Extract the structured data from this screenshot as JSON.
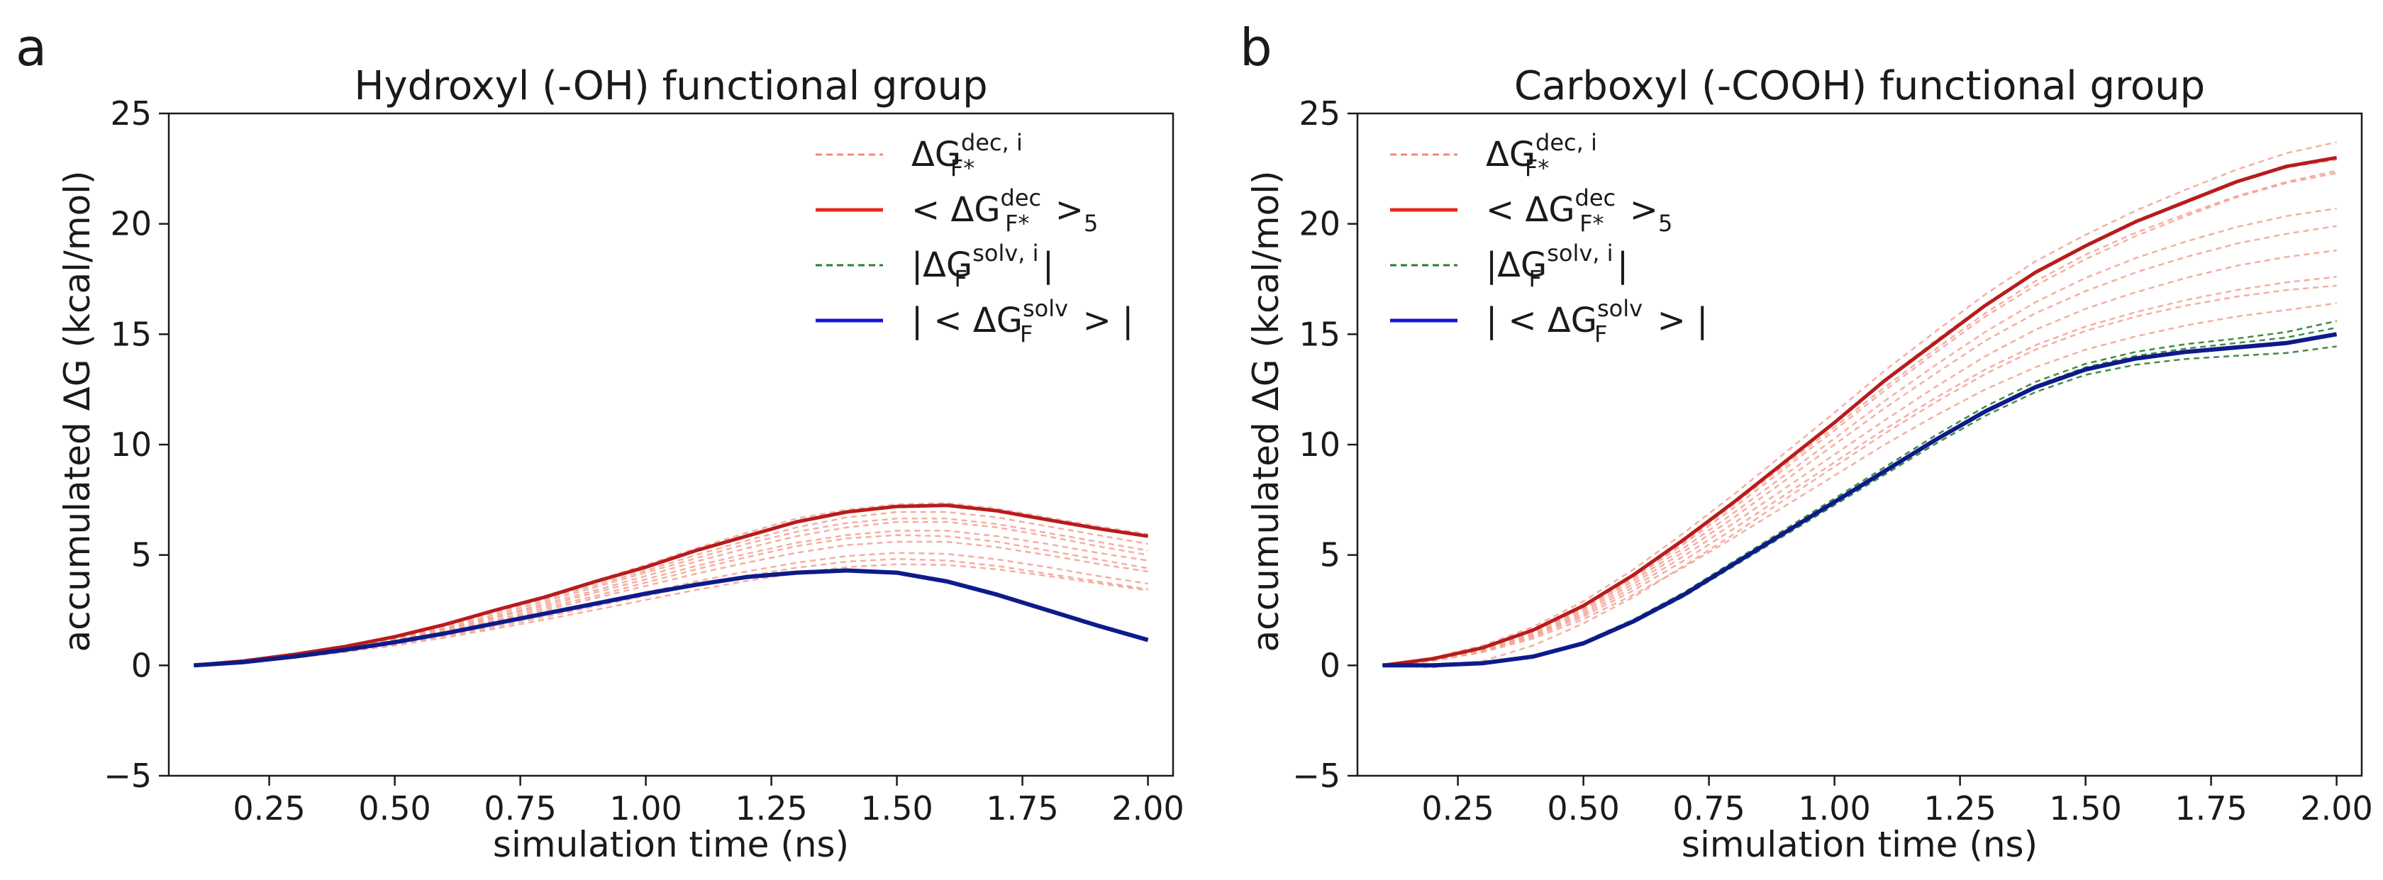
{
  "figure": {
    "panel_letters": [
      "a",
      "b"
    ]
  },
  "chart_data": [
    {
      "type": "line",
      "panel": "a",
      "title": "Hydroxyl (-OH) functional group",
      "xlabel": "simulation time (ns)",
      "ylabel": "accumulated ΔG (kcal/mol)",
      "xlim": [
        0.05,
        2.05
      ],
      "ylim": [
        -5,
        25
      ],
      "xticks": [
        0.25,
        0.5,
        0.75,
        1.0,
        1.25,
        1.5,
        1.75,
        2.0
      ],
      "xtick_labels": [
        "0.25",
        "0.50",
        "0.75",
        "1.00",
        "1.25",
        "1.50",
        "1.75",
        "2.00"
      ],
      "yticks": [
        -5,
        0,
        5,
        10,
        15,
        20,
        25
      ],
      "ytick_labels": [
        "−5",
        "0",
        "5",
        "10",
        "15",
        "20",
        "25"
      ],
      "grid": false,
      "legend_position": "top-right",
      "legend": [
        {
          "base": "ΔG",
          "sup": "dec, i",
          "sub": "F*",
          "pre": "",
          "post": "",
          "style": "dashed",
          "color": "#f08a76"
        },
        {
          "base": "ΔG",
          "sup": "dec",
          "sub": "F*",
          "pre": "< ",
          "post": " >",
          "post_sub": "5",
          "style": "solid",
          "color": "#e8281e"
        },
        {
          "base": "ΔG",
          "sup": "solv, i",
          "sub": "F",
          "pre": "|",
          "post": "|",
          "style": "dashed",
          "color": "#2e7d32"
        },
        {
          "base": "ΔG",
          "sup": "solv",
          "sub": "F",
          "pre": "| < ",
          "post": " > |",
          "style": "solid",
          "color": "#1414d8"
        }
      ],
      "x": [
        0.1,
        0.2,
        0.3,
        0.4,
        0.5,
        0.6,
        0.7,
        0.8,
        0.9,
        1.0,
        1.1,
        1.2,
        1.3,
        1.4,
        1.5,
        1.6,
        1.7,
        1.8,
        1.9,
        2.0
      ],
      "series": [
        {
          "name": "<ΔG dec>_5 (mean)",
          "color": "#b71c1c",
          "width": 5,
          "values": [
            0.0,
            0.2,
            0.5,
            0.85,
            1.3,
            1.85,
            2.5,
            3.1,
            3.8,
            4.45,
            5.2,
            5.85,
            6.5,
            6.95,
            7.2,
            7.25,
            7.0,
            6.6,
            6.2,
            5.85
          ]
        },
        {
          "name": "|<ΔG solv>|",
          "color": "#0d1b8a",
          "width": 6,
          "values": [
            0.0,
            0.15,
            0.4,
            0.7,
            1.05,
            1.45,
            1.9,
            2.35,
            2.8,
            3.25,
            3.65,
            4.0,
            4.2,
            4.3,
            4.2,
            3.8,
            3.2,
            2.5,
            1.8,
            1.15
          ]
        }
      ],
      "individual_dec": [
        [
          0.0,
          0.2,
          0.5,
          0.85,
          1.3,
          1.85,
          2.5,
          3.15,
          3.85,
          4.55,
          5.3,
          6.0,
          6.65,
          7.05,
          7.3,
          7.35,
          7.1,
          6.7,
          6.3,
          5.95
        ],
        [
          0.0,
          0.2,
          0.45,
          0.8,
          1.2,
          1.7,
          2.3,
          2.9,
          3.55,
          4.2,
          4.85,
          5.5,
          6.05,
          6.45,
          6.65,
          6.65,
          6.4,
          6.0,
          5.6,
          5.2
        ],
        [
          0.0,
          0.18,
          0.42,
          0.75,
          1.15,
          1.6,
          2.15,
          2.7,
          3.3,
          3.9,
          4.5,
          5.05,
          5.55,
          5.9,
          6.1,
          6.1,
          5.85,
          5.5,
          5.1,
          4.75
        ],
        [
          0.0,
          0.17,
          0.4,
          0.7,
          1.05,
          1.5,
          2.0,
          2.5,
          3.05,
          3.6,
          4.15,
          4.65,
          5.1,
          5.45,
          5.6,
          5.6,
          5.35,
          5.0,
          4.6,
          4.25
        ],
        [
          0.0,
          0.16,
          0.38,
          0.65,
          1.0,
          1.4,
          1.85,
          2.3,
          2.8,
          3.3,
          3.8,
          4.25,
          4.65,
          4.95,
          5.1,
          5.05,
          4.8,
          4.45,
          4.05,
          3.7
        ],
        [
          0.0,
          0.2,
          0.48,
          0.82,
          1.25,
          1.78,
          2.4,
          3.0,
          3.65,
          4.3,
          5.0,
          5.65,
          6.25,
          6.7,
          6.95,
          6.95,
          6.7,
          6.3,
          5.9,
          5.5
        ],
        [
          0.0,
          0.19,
          0.44,
          0.78,
          1.18,
          1.65,
          2.2,
          2.8,
          3.4,
          4.05,
          4.7,
          5.3,
          5.85,
          6.25,
          6.5,
          6.5,
          6.25,
          5.85,
          5.4,
          5.0
        ],
        [
          0.0,
          0.17,
          0.41,
          0.72,
          1.1,
          1.55,
          2.05,
          2.6,
          3.15,
          3.75,
          4.35,
          4.9,
          5.4,
          5.75,
          5.9,
          5.85,
          5.6,
          5.2,
          4.8,
          4.4
        ],
        [
          0.0,
          0.15,
          0.36,
          0.62,
          0.95,
          1.33,
          1.75,
          2.2,
          2.68,
          3.15,
          3.62,
          4.05,
          4.42,
          4.7,
          4.82,
          4.75,
          4.5,
          4.15,
          3.8,
          3.45
        ],
        [
          0.0,
          0.14,
          0.34,
          0.6,
          0.9,
          1.26,
          1.66,
          2.08,
          2.52,
          2.97,
          3.42,
          3.82,
          4.18,
          4.45,
          4.58,
          4.55,
          4.35,
          4.05,
          3.72,
          3.4
        ]
      ],
      "individual_solv": [
        [
          0.0,
          0.15,
          0.4,
          0.72,
          1.08,
          1.48,
          1.93,
          2.38,
          2.83,
          3.28,
          3.68,
          4.03,
          4.24,
          4.34,
          4.23,
          3.83,
          3.22,
          2.52,
          1.82,
          1.18
        ],
        [
          0.0,
          0.14,
          0.39,
          0.69,
          1.03,
          1.42,
          1.87,
          2.32,
          2.77,
          3.22,
          3.62,
          3.97,
          4.17,
          4.27,
          4.17,
          3.77,
          3.17,
          2.47,
          1.77,
          1.12
        ],
        [
          0.0,
          0.16,
          0.41,
          0.71,
          1.06,
          1.46,
          1.91,
          2.36,
          2.81,
          3.26,
          3.66,
          4.01,
          4.21,
          4.31,
          4.21,
          3.81,
          3.21,
          2.51,
          1.81,
          1.16
        ]
      ]
    },
    {
      "type": "line",
      "panel": "b",
      "title": "Carboxyl (-COOH) functional group",
      "xlabel": "simulation time (ns)",
      "ylabel": "accumulated ΔG (kcal/mol)",
      "xlim": [
        0.05,
        2.05
      ],
      "ylim": [
        -5,
        25
      ],
      "xticks": [
        0.25,
        0.5,
        0.75,
        1.0,
        1.25,
        1.5,
        1.75,
        2.0
      ],
      "xtick_labels": [
        "0.25",
        "0.50",
        "0.75",
        "1.00",
        "1.25",
        "1.50",
        "1.75",
        "2.00"
      ],
      "yticks": [
        -5,
        0,
        5,
        10,
        15,
        20,
        25
      ],
      "ytick_labels": [
        "−5",
        "0",
        "5",
        "10",
        "15",
        "20",
        "25"
      ],
      "grid": false,
      "legend_position": "top-left",
      "legend": [
        {
          "base": "ΔG",
          "sup": "dec, i",
          "sub": "F*",
          "pre": "",
          "post": "",
          "style": "dashed",
          "color": "#f08a76"
        },
        {
          "base": "ΔG",
          "sup": "dec",
          "sub": "F*",
          "pre": "< ",
          "post": " >",
          "post_sub": "5",
          "style": "solid",
          "color": "#e8281e"
        },
        {
          "base": "ΔG",
          "sup": "solv, i",
          "sub": "F",
          "pre": "|",
          "post": "|",
          "style": "dashed",
          "color": "#2e7d32"
        },
        {
          "base": "ΔG",
          "sup": "solv",
          "sub": "F",
          "pre": "| < ",
          "post": " > |",
          "style": "solid",
          "color": "#1414d8"
        }
      ],
      "x": [
        0.1,
        0.2,
        0.3,
        0.4,
        0.5,
        0.6,
        0.7,
        0.8,
        0.9,
        1.0,
        1.1,
        1.2,
        1.3,
        1.4,
        1.5,
        1.6,
        1.7,
        1.8,
        1.9,
        2.0
      ],
      "series": [
        {
          "name": "<ΔG dec>_5 (mean)",
          "color": "#b71c1c",
          "width": 5,
          "values": [
            0.0,
            0.3,
            0.8,
            1.6,
            2.7,
            4.1,
            5.7,
            7.4,
            9.2,
            11.0,
            12.9,
            14.6,
            16.3,
            17.8,
            19.0,
            20.1,
            21.0,
            21.9,
            22.6,
            23.0
          ]
        },
        {
          "name": "|<ΔG solv>|",
          "color": "#0d1b8a",
          "width": 6,
          "values": [
            0.0,
            0.0,
            0.1,
            0.4,
            1.0,
            2.0,
            3.2,
            4.6,
            6.0,
            7.4,
            8.8,
            10.2,
            11.5,
            12.6,
            13.4,
            13.9,
            14.2,
            14.4,
            14.6,
            15.0
          ]
        }
      ],
      "individual_dec": [
        [
          0.0,
          0.35,
          0.9,
          1.75,
          2.9,
          4.35,
          6.0,
          7.75,
          9.6,
          11.45,
          13.35,
          15.1,
          16.8,
          18.3,
          19.5,
          20.6,
          21.55,
          22.45,
          23.2,
          23.7
        ],
        [
          0.0,
          0.32,
          0.85,
          1.65,
          2.75,
          4.15,
          5.75,
          7.45,
          9.25,
          11.05,
          12.95,
          14.7,
          16.35,
          17.85,
          19.05,
          20.15,
          21.05,
          21.95,
          22.55,
          22.9
        ],
        [
          0.0,
          0.28,
          0.78,
          1.55,
          2.6,
          3.95,
          5.5,
          7.15,
          8.9,
          10.65,
          12.45,
          14.15,
          15.8,
          17.2,
          18.4,
          19.45,
          20.35,
          21.2,
          21.85,
          22.3
        ],
        [
          0.0,
          0.25,
          0.7,
          1.42,
          2.42,
          3.7,
          5.15,
          6.7,
          8.35,
          10.0,
          11.65,
          13.2,
          14.7,
          15.95,
          16.95,
          17.8,
          18.5,
          19.1,
          19.55,
          19.9
        ],
        [
          0.0,
          0.22,
          0.64,
          1.3,
          2.22,
          3.4,
          4.75,
          6.2,
          7.7,
          9.2,
          10.7,
          12.1,
          13.4,
          14.5,
          15.35,
          16.0,
          16.55,
          17.0,
          17.35,
          17.6
        ],
        [
          0.0,
          0.2,
          0.6,
          1.22,
          2.1,
          3.2,
          4.45,
          5.8,
          7.2,
          8.6,
          10.0,
          11.3,
          12.5,
          13.5,
          14.3,
          14.9,
          15.4,
          15.8,
          16.1,
          16.4
        ],
        [
          0.0,
          0.3,
          0.82,
          1.6,
          2.68,
          4.05,
          5.6,
          7.3,
          9.05,
          10.8,
          12.6,
          14.3,
          15.95,
          17.4,
          18.6,
          19.6,
          20.45,
          21.25,
          21.9,
          22.4
        ],
        [
          0.0,
          0.27,
          0.75,
          1.5,
          2.52,
          3.83,
          5.32,
          6.92,
          8.6,
          10.28,
          11.98,
          13.58,
          15.1,
          16.45,
          17.55,
          18.45,
          19.2,
          19.85,
          20.35,
          20.7
        ],
        [
          0.0,
          -0.1,
          0.2,
          0.9,
          1.9,
          3.1,
          4.5,
          5.95,
          7.5,
          9.0,
          10.5,
          11.9,
          13.2,
          14.3,
          15.15,
          15.8,
          16.3,
          16.7,
          17.0,
          17.2
        ],
        [
          0.0,
          0.24,
          0.67,
          1.36,
          2.32,
          3.55,
          4.95,
          6.45,
          8.0,
          9.55,
          11.1,
          12.6,
          14.0,
          15.2,
          16.15,
          16.9,
          17.55,
          18.1,
          18.5,
          18.8
        ]
      ],
      "individual_solv": [
        [
          0.0,
          0.0,
          0.12,
          0.44,
          1.06,
          2.08,
          3.3,
          4.72,
          6.14,
          7.56,
          8.98,
          10.4,
          11.72,
          12.84,
          13.66,
          14.2,
          14.55,
          14.8,
          15.1,
          15.6
        ],
        [
          0.0,
          -0.02,
          0.08,
          0.38,
          0.96,
          1.94,
          3.12,
          4.5,
          5.88,
          7.26,
          8.64,
          10.02,
          11.3,
          12.38,
          13.16,
          13.62,
          13.88,
          14.02,
          14.15,
          14.45
        ],
        [
          0.0,
          0.01,
          0.11,
          0.42,
          1.02,
          2.02,
          3.24,
          4.64,
          6.04,
          7.44,
          8.84,
          10.24,
          11.54,
          12.66,
          13.5,
          14.02,
          14.35,
          14.6,
          14.85,
          15.3
        ]
      ]
    }
  ]
}
